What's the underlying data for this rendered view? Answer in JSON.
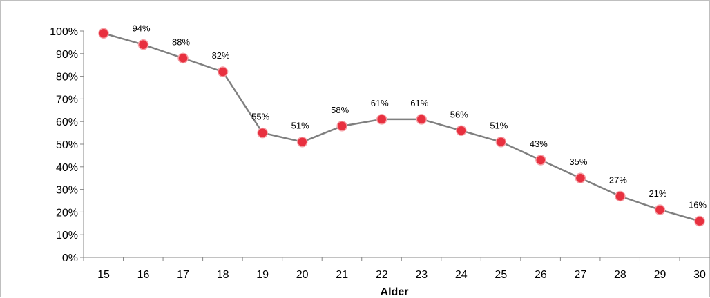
{
  "chart_data": {
    "type": "line",
    "title": "",
    "xlabel": "Alder",
    "ylabel": "",
    "x": [
      15,
      16,
      17,
      18,
      19,
      20,
      21,
      22,
      23,
      24,
      25,
      26,
      27,
      28,
      29,
      30
    ],
    "y_tick_labels": [
      "0%",
      "10%",
      "20%",
      "30%",
      "40%",
      "50%",
      "60%",
      "70%",
      "80%",
      "90%",
      "100%"
    ],
    "ylim": [
      0,
      100
    ],
    "grid": false,
    "legend": "none",
    "series": [
      {
        "values": [
          99,
          94,
          88,
          82,
          55,
          51,
          58,
          61,
          61,
          56,
          51,
          43,
          35,
          27,
          21,
          16
        ],
        "data_labels": [
          "",
          "94%",
          "88%",
          "82%",
          "55%",
          "51%",
          "58%",
          "61%",
          "61%",
          "56%",
          "51%",
          "43%",
          "35%",
          "27%",
          "21%",
          "16%"
        ],
        "line_color": "#7f7f7f",
        "marker_color": "#e8303f",
        "marker_edge_color": "#f4a0a6"
      }
    ]
  }
}
